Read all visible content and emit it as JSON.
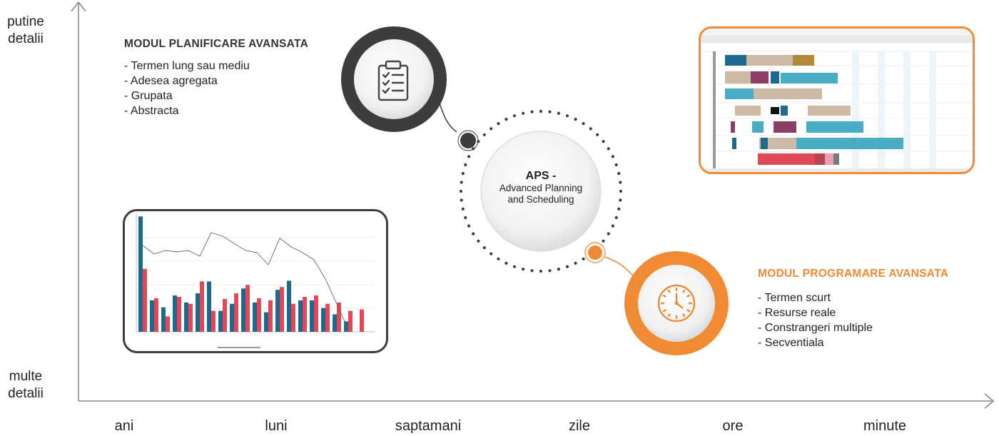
{
  "axes": {
    "y_top_label": [
      "putine",
      "detalii"
    ],
    "y_bottom_label": [
      "multe",
      "detalii"
    ],
    "x_ticks": [
      "ani",
      "luni",
      "saptamani",
      "zile",
      "ore",
      "minute"
    ]
  },
  "planning": {
    "title": "MODUL PLANIFICARE AVANSATA",
    "items": [
      "- Termen lung sau mediu",
      "- Adesea agregata",
      "- Grupata",
      "- Abstracta"
    ]
  },
  "center": {
    "title": "APS -",
    "subtitle": [
      "Advanced Planning",
      "and Scheduling"
    ]
  },
  "scheduling": {
    "title": "MODUL PROGRAMARE AVANSATA",
    "items": [
      "- Termen scurt",
      "- Resurse reale",
      "- Constrangeri multiple",
      "- Secventiala"
    ]
  },
  "icons": {
    "planning_icon": "clipboard-checklist-icon",
    "scheduling_icon": "clock-icon"
  },
  "colors": {
    "dark": "#3d3d3d",
    "orange": "#f08a35",
    "blue": "#1e6a8f",
    "red": "#e04955",
    "teal": "#4aadc6",
    "tan": "#cdb9a4"
  }
}
